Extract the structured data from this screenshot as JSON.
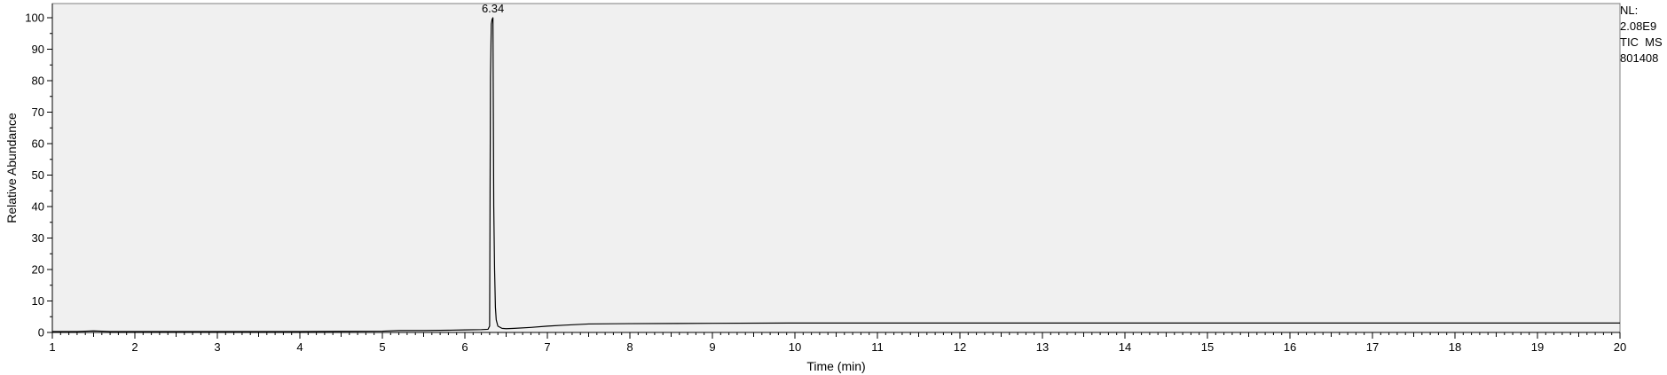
{
  "chart_data": {
    "type": "line",
    "title": "",
    "xlabel": "Time (min)",
    "ylabel": "Relative Abundance",
    "xlim": [
      1,
      20
    ],
    "ylim": [
      0,
      100
    ],
    "x_ticks": [
      1,
      2,
      3,
      4,
      5,
      6,
      7,
      8,
      9,
      10,
      11,
      12,
      13,
      14,
      15,
      16,
      17,
      18,
      19,
      20
    ],
    "y_ticks": [
      0,
      10,
      20,
      30,
      40,
      50,
      60,
      70,
      80,
      90,
      100
    ],
    "plot_background": "#f0f0f0",
    "line_color": "#000000",
    "peak_annotations": [
      {
        "x": 6.34,
        "y": 100,
        "label": "6.34"
      }
    ],
    "series": [
      {
        "name": "TIC MS 801408",
        "x": [
          1.0,
          1.3,
          1.5,
          1.7,
          2.0,
          3.0,
          4.0,
          5.0,
          5.2,
          5.5,
          5.8,
          6.0,
          6.2,
          6.28,
          6.3,
          6.31,
          6.32,
          6.33,
          6.34,
          6.35,
          6.36,
          6.37,
          6.38,
          6.4,
          6.45,
          6.5,
          6.6,
          6.8,
          7.0,
          7.2,
          7.5,
          8.0,
          9.0,
          10.0,
          11.0,
          12.0,
          14.0,
          16.0,
          18.0,
          20.0
        ],
        "y": [
          0.3,
          0.3,
          0.5,
          0.3,
          0.3,
          0.3,
          0.3,
          0.4,
          0.6,
          0.6,
          0.7,
          0.8,
          0.9,
          1.0,
          2.0,
          81.0,
          98.0,
          99.5,
          100.0,
          40.0,
          20.0,
          8.0,
          4.0,
          2.0,
          1.3,
          1.2,
          1.3,
          1.6,
          2.0,
          2.3,
          2.7,
          2.8,
          2.9,
          3.0,
          3.0,
          3.0,
          3.0,
          3.0,
          3.0,
          3.0
        ]
      }
    ]
  },
  "side_info": {
    "nl_label": "NL:",
    "nl_value": "2.08E9",
    "scan_filter": "TIC  MS",
    "file_id": "801408"
  }
}
